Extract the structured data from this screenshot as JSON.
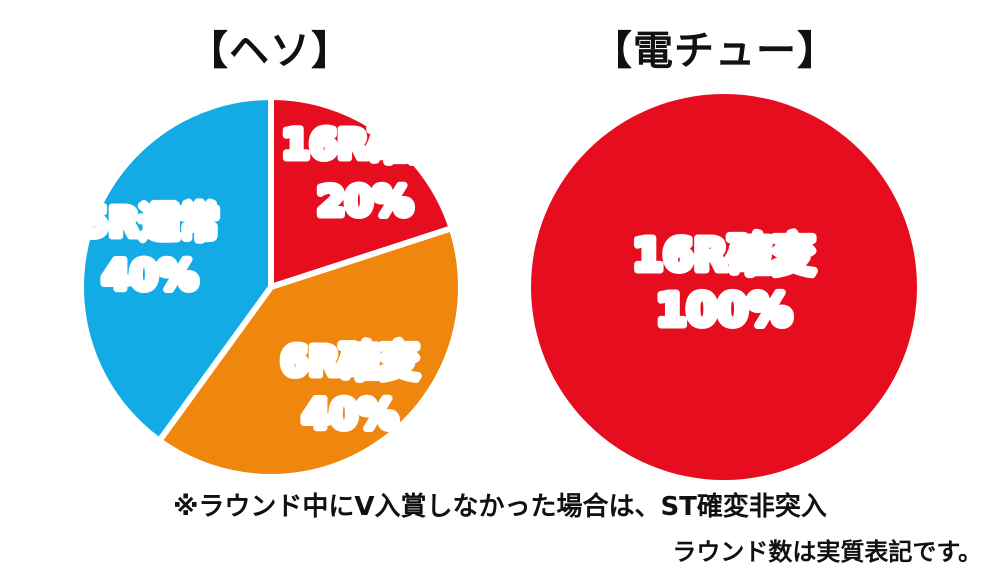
{
  "chart_data": [
    {
      "type": "pie",
      "title": "【ヘソ】",
      "slices": [
        {
          "label": "16R確変",
          "value": 20,
          "value_label": "20%",
          "color": "#e60d1e",
          "text_color": "#ffffff",
          "outline": "#f08a8f"
        },
        {
          "label": "6R確変",
          "value": 40,
          "value_label": "40%",
          "color": "#ef860d",
          "text_color": "#ffffff",
          "outline": "#f7c275"
        },
        {
          "label": "5R通常",
          "value": 40,
          "value_label": "40%",
          "color": "#12abe6",
          "text_color": "#ffffff",
          "outline": "#8fd5f2"
        }
      ]
    },
    {
      "type": "pie",
      "title": "【電チュー】",
      "slices": [
        {
          "label": "16R確変",
          "value": 100,
          "value_label": "100%",
          "color": "#e60d1e",
          "text_color": "#ffffff",
          "outline": "#e60d1e"
        }
      ]
    }
  ],
  "notes": {
    "line1": "※ラウンド中にV入賞しなかった場合は、ST確変非突入",
    "line2": "ラウンド数は実質表記です。"
  }
}
